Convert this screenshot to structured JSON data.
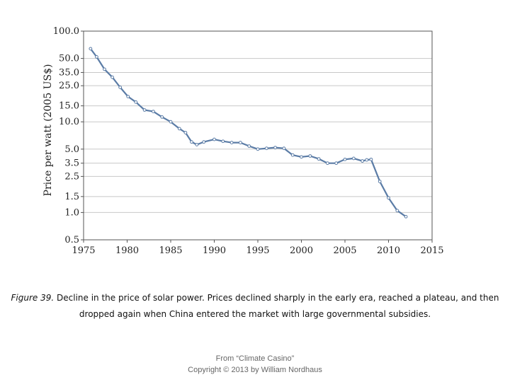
{
  "chart_data": {
    "type": "line",
    "title": "",
    "xlabel": "",
    "ylabel": "Price per watt (2005 US$)",
    "xlim": [
      1975,
      2015
    ],
    "ylim": [
      0.5,
      100
    ],
    "yscale": "log",
    "x_ticks": [
      "1975",
      "1980",
      "1985",
      "1990",
      "1995",
      "2000",
      "2005",
      "2010",
      "2015"
    ],
    "y_ticks": [
      {
        "value": 100,
        "label": "100.0"
      },
      {
        "value": 50,
        "label": "50.0"
      },
      {
        "value": 35,
        "label": "35.0"
      },
      {
        "value": 25,
        "label": "25.0"
      },
      {
        "value": 15,
        "label": "15.0"
      },
      {
        "value": 10,
        "label": "10.0"
      },
      {
        "value": 5,
        "label": "5.0"
      },
      {
        "value": 3.5,
        "label": "3.5"
      },
      {
        "value": 2.5,
        "label": "2.5"
      },
      {
        "value": 1.5,
        "label": "1.5"
      },
      {
        "value": 1,
        "label": "1.0"
      },
      {
        "value": 0.5,
        "label": "0.5"
      }
    ],
    "grid": "horizontal",
    "series": [
      {
        "color": "#5b7ca6",
        "x": [
          1975.8,
          1976.5,
          1977.4,
          1978.3,
          1979.2,
          1980.1,
          1981.0,
          1982.0,
          1983.0,
          1984.0,
          1985.0,
          1986.0,
          1986.7,
          1987.4,
          1988.0,
          1988.8,
          1990.0,
          1991.0,
          1992.0,
          1993.0,
          1994.0,
          1995.0,
          1996.0,
          1997.0,
          1998.0,
          1999.0,
          2000.0,
          2001.0,
          2002.0,
          2003.0,
          2004.0,
          2005.0,
          2006.0,
          2007.0,
          2007.5,
          2008.0,
          2009.0,
          2010.0,
          2011.0,
          2012.0
        ],
        "y": [
          64,
          52,
          38,
          31,
          24,
          19,
          16.5,
          13.5,
          13,
          11.3,
          10,
          8.4,
          7.6,
          6.0,
          5.6,
          6.0,
          6.4,
          6.1,
          5.9,
          5.9,
          5.4,
          5.0,
          5.1,
          5.2,
          5.1,
          4.3,
          4.1,
          4.2,
          3.9,
          3.5,
          3.5,
          3.85,
          3.95,
          3.7,
          3.8,
          3.85,
          2.2,
          1.45,
          1.05,
          0.9
        ]
      }
    ]
  },
  "caption": {
    "figure_label": "Figure 39.",
    "line1_rest": " Decline in the price of solar power. Prices declined sharply in the early era, reached a plateau, and then",
    "line2": "dropped again when China entered the market with large governmental subsidies."
  },
  "footer": {
    "line1": "From “Climate Casino”",
    "line2": "Copyright © 2013 by William Nordhaus"
  }
}
